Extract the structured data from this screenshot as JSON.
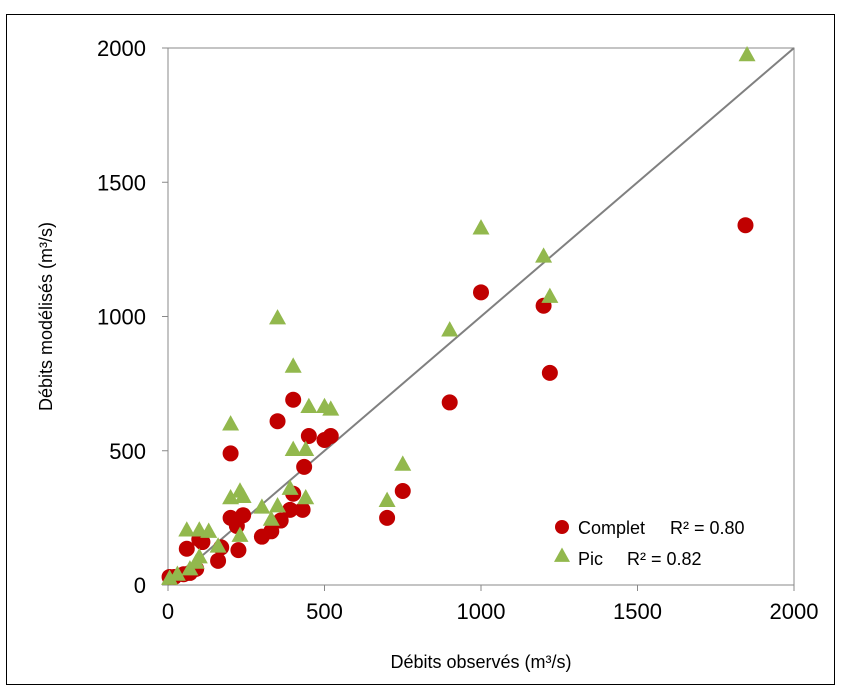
{
  "chart_data": {
    "type": "scatter",
    "xlabel": "Débits observés (m³/s)",
    "ylabel": "Débits modélisés (m³/s)",
    "xlim": [
      0,
      2000
    ],
    "ylim": [
      0,
      2000
    ],
    "x_ticks": [
      "0",
      "500",
      "1000",
      "1500",
      "2000"
    ],
    "y_ticks": [
      "0",
      "500",
      "1000",
      "1500",
      "2000"
    ],
    "grid": false,
    "legend_position": "bottom-right",
    "reference_line": {
      "type": "identity",
      "from": [
        0,
        0
      ],
      "to": [
        2000,
        2000
      ],
      "color": "#808080"
    },
    "series": [
      {
        "name": "Complet",
        "r2_label": "R² = 0.80",
        "marker": "circle",
        "color": "#c00000",
        "points": [
          [
            5,
            30
          ],
          [
            20,
            30
          ],
          [
            50,
            40
          ],
          [
            60,
            135
          ],
          [
            70,
            45
          ],
          [
            90,
            60
          ],
          [
            100,
            170
          ],
          [
            110,
            160
          ],
          [
            160,
            90
          ],
          [
            170,
            140
          ],
          [
            200,
            490
          ],
          [
            200,
            250
          ],
          [
            220,
            220
          ],
          [
            225,
            130
          ],
          [
            240,
            260
          ],
          [
            300,
            180
          ],
          [
            330,
            200
          ],
          [
            350,
            610
          ],
          [
            360,
            240
          ],
          [
            390,
            280
          ],
          [
            400,
            690
          ],
          [
            400,
            340
          ],
          [
            430,
            280
          ],
          [
            435,
            440
          ],
          [
            450,
            555
          ],
          [
            500,
            540
          ],
          [
            520,
            555
          ],
          [
            700,
            250
          ],
          [
            750,
            350
          ],
          [
            900,
            680
          ],
          [
            1000,
            1090
          ],
          [
            1200,
            1040
          ],
          [
            1220,
            790
          ],
          [
            1845,
            1340
          ]
        ]
      },
      {
        "name": "Pic",
        "r2_label": "R² = 0.82",
        "marker": "triangle",
        "color": "#92b84d",
        "points": [
          [
            5,
            20
          ],
          [
            30,
            35
          ],
          [
            60,
            200
          ],
          [
            70,
            55
          ],
          [
            90,
            80
          ],
          [
            100,
            200
          ],
          [
            100,
            100
          ],
          [
            130,
            195
          ],
          [
            160,
            140
          ],
          [
            200,
            595
          ],
          [
            200,
            320
          ],
          [
            230,
            345
          ],
          [
            230,
            180
          ],
          [
            240,
            325
          ],
          [
            300,
            285
          ],
          [
            330,
            240
          ],
          [
            350,
            990
          ],
          [
            350,
            290
          ],
          [
            390,
            355
          ],
          [
            400,
            810
          ],
          [
            400,
            500
          ],
          [
            440,
            320
          ],
          [
            440,
            500
          ],
          [
            450,
            660
          ],
          [
            500,
            660
          ],
          [
            520,
            650
          ],
          [
            700,
            310
          ],
          [
            750,
            445
          ],
          [
            900,
            945
          ],
          [
            1000,
            1325
          ],
          [
            1200,
            1220
          ],
          [
            1220,
            1070
          ],
          [
            1850,
            1970
          ]
        ]
      }
    ]
  }
}
